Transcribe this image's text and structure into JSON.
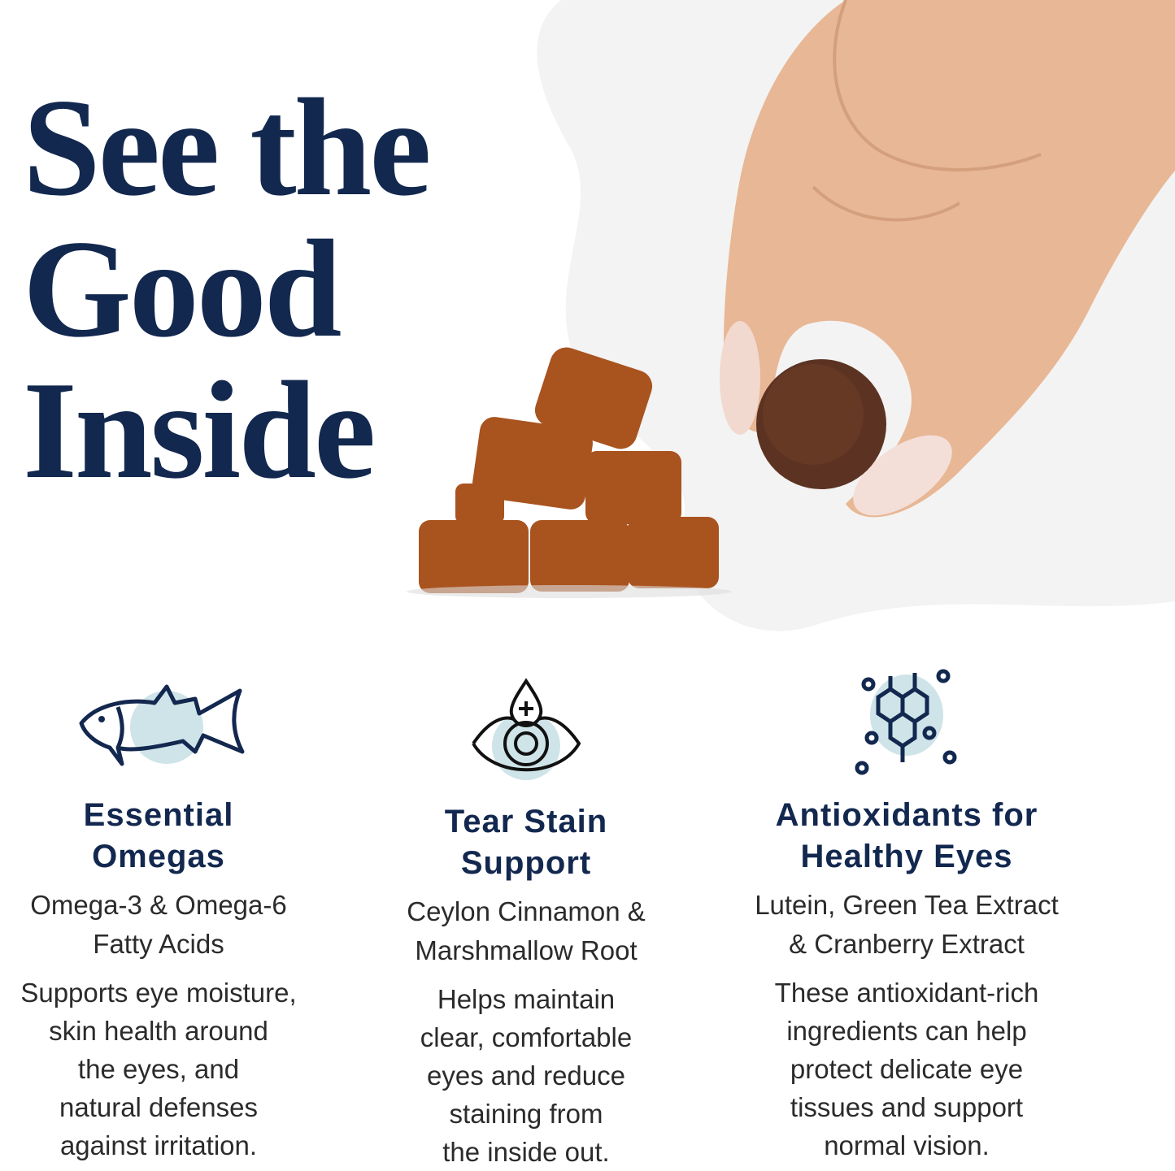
{
  "headline": {
    "lines": [
      "See the",
      "Good",
      "Inside"
    ]
  },
  "colors": {
    "navy": "#13284f",
    "icon_accent": "#cfe4e8",
    "text": "#2b2b2b",
    "chew": "#a9531f",
    "backdrop": "#f3f3f3"
  },
  "features": [
    {
      "icon": "fish-icon",
      "title_lines": [
        "Essential",
        "Omegas"
      ],
      "subtitle_lines": [
        "Omega-3 & Omega-6",
        "Fatty Acids"
      ],
      "body_lines": [
        "Supports eye moisture,",
        "skin health around",
        "the eyes, and",
        "natural defenses",
        "against irritation."
      ]
    },
    {
      "icon": "eye-drop-icon",
      "title_lines": [
        "Tear Stain",
        "Support"
      ],
      "subtitle_lines": [
        "Ceylon Cinnamon &",
        "Marshmallow Root"
      ],
      "body_lines": [
        "Helps maintain",
        "clear, comfortable",
        "eyes and reduce",
        "staining from",
        "the inside out."
      ]
    },
    {
      "icon": "molecule-icon",
      "title_lines": [
        "Antioxidants for",
        "Healthy Eyes"
      ],
      "subtitle_lines": [
        "Lutein, Green Tea Extract",
        "& Cranberry Extract"
      ],
      "body_lines": [
        "These antioxidant-rich",
        "ingredients can help",
        "protect delicate eye",
        "tissues and support",
        "normal vision."
      ]
    }
  ]
}
